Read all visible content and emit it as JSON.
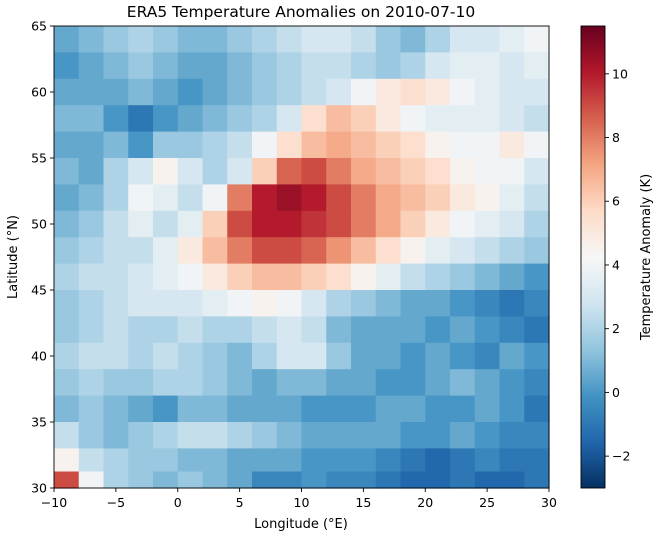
{
  "chart_data": {
    "type": "heatmap",
    "title": "ERA5 Temperature Anomalies on 2010-07-10",
    "xlabel": "Longitude (°E)",
    "ylabel": "Latitude (°N)",
    "colorbar_label": "Temperature Anomaly (K)",
    "colormap": "RdBu_r",
    "xlim": [
      -10,
      30
    ],
    "ylim": [
      30,
      65
    ],
    "clim": [
      -3.0,
      11.5
    ],
    "x_ticks": [
      -10,
      -5,
      0,
      5,
      10,
      15,
      20,
      25,
      30
    ],
    "x_tick_labels": [
      "−10",
      "−5",
      "0",
      "5",
      "10",
      "15",
      "20",
      "25",
      "30"
    ],
    "y_ticks": [
      30,
      35,
      40,
      45,
      50,
      55,
      60,
      65
    ],
    "y_tick_labels": [
      "30",
      "35",
      "40",
      "45",
      "50",
      "55",
      "60",
      "65"
    ],
    "colorbar_ticks": [
      -2,
      0,
      2,
      4,
      6,
      8,
      10
    ],
    "colorbar_tick_labels": [
      "−2",
      "0",
      "2",
      "4",
      "6",
      "8",
      "10"
    ],
    "grid": false,
    "x_lon": [
      -9,
      -7,
      -5,
      -3,
      -1,
      1,
      3,
      5,
      7,
      9,
      11,
      13,
      15,
      17,
      19,
      21,
      23,
      25,
      27,
      29
    ],
    "y_lat": [
      64,
      62,
      60,
      58,
      56,
      54,
      52,
      50,
      48,
      46,
      44,
      42,
      40,
      38,
      36,
      34,
      32,
      30.5
    ],
    "values": [
      [
        0.5,
        1.0,
        1.5,
        2.0,
        1.5,
        1.0,
        1.0,
        1.5,
        2.0,
        2.5,
        3.0,
        3.0,
        2.5,
        1.5,
        1.0,
        2.0,
        3.0,
        3.0,
        3.5,
        4.0
      ],
      [
        0.0,
        0.5,
        1.0,
        1.5,
        1.0,
        0.5,
        0.5,
        1.0,
        1.5,
        2.0,
        2.5,
        2.5,
        2.0,
        1.5,
        2.0,
        3.0,
        3.5,
        3.5,
        3.0,
        3.5
      ],
      [
        0.5,
        0.5,
        0.5,
        1.0,
        0.5,
        0.0,
        0.5,
        1.0,
        1.5,
        2.0,
        2.5,
        3.0,
        4.0,
        5.0,
        5.5,
        5.0,
        4.0,
        3.5,
        3.0,
        3.0
      ],
      [
        1.0,
        1.0,
        0.0,
        -1.0,
        0.0,
        0.5,
        1.0,
        1.5,
        2.0,
        3.0,
        5.5,
        6.5,
        6.0,
        5.0,
        4.0,
        3.5,
        3.5,
        3.5,
        3.0,
        2.5
      ],
      [
        0.5,
        0.5,
        1.0,
        0.0,
        1.5,
        1.5,
        2.0,
        2.5,
        4.0,
        5.5,
        6.5,
        7.0,
        6.5,
        6.0,
        5.5,
        4.5,
        4.0,
        4.0,
        5.0,
        4.0
      ],
      [
        1.0,
        0.5,
        2.0,
        3.0,
        4.5,
        3.0,
        2.0,
        3.0,
        6.0,
        8.5,
        9.0,
        8.0,
        7.0,
        6.5,
        6.0,
        5.5,
        4.5,
        4.0,
        4.0,
        3.0
      ],
      [
        0.5,
        1.0,
        2.0,
        4.0,
        3.5,
        2.5,
        4.0,
        8.0,
        10.0,
        10.5,
        10.0,
        9.0,
        8.0,
        7.0,
        6.5,
        6.0,
        5.0,
        4.5,
        3.5,
        2.5
      ],
      [
        1.0,
        1.5,
        2.5,
        3.5,
        2.5,
        3.5,
        6.0,
        9.0,
        10.0,
        10.0,
        9.5,
        9.0,
        8.0,
        7.0,
        6.0,
        5.0,
        4.0,
        3.5,
        3.0,
        2.0
      ],
      [
        1.5,
        2.0,
        2.5,
        2.5,
        3.5,
        5.0,
        6.5,
        8.0,
        9.0,
        9.0,
        8.5,
        7.5,
        6.5,
        5.5,
        4.5,
        3.5,
        3.0,
        2.5,
        2.0,
        1.5
      ],
      [
        2.0,
        2.5,
        2.5,
        3.0,
        3.5,
        4.0,
        5.0,
        6.0,
        6.5,
        6.5,
        6.0,
        5.5,
        4.5,
        3.5,
        2.5,
        2.0,
        1.5,
        1.0,
        0.5,
        0.0
      ],
      [
        1.5,
        2.0,
        2.5,
        3.0,
        3.0,
        3.0,
        3.5,
        4.0,
        4.5,
        4.0,
        3.0,
        2.0,
        1.5,
        1.0,
        0.5,
        0.5,
        0.0,
        -0.5,
        -1.0,
        -0.5
      ],
      [
        1.5,
        2.0,
        2.5,
        2.0,
        2.0,
        2.5,
        2.0,
        2.0,
        2.5,
        3.0,
        2.5,
        1.0,
        0.5,
        0.5,
        0.5,
        0.0,
        0.5,
        0.0,
        -0.5,
        -1.0
      ],
      [
        2.0,
        2.5,
        2.5,
        2.0,
        2.5,
        2.0,
        1.5,
        1.0,
        2.0,
        3.0,
        3.0,
        1.5,
        0.5,
        0.5,
        0.0,
        0.5,
        0.0,
        -0.5,
        0.5,
        0.0
      ],
      [
        1.5,
        2.0,
        1.5,
        1.5,
        2.0,
        2.0,
        1.5,
        1.0,
        0.5,
        1.0,
        1.0,
        0.5,
        0.5,
        0.0,
        0.0,
        0.5,
        1.0,
        0.5,
        0.0,
        -0.5
      ],
      [
        1.0,
        1.5,
        1.0,
        0.5,
        0.0,
        1.0,
        1.0,
        0.5,
        0.5,
        0.5,
        0.0,
        0.0,
        0.0,
        0.5,
        0.5,
        0.0,
        0.0,
        0.5,
        0.0,
        -1.0
      ],
      [
        2.5,
        1.5,
        1.0,
        1.5,
        2.0,
        2.5,
        2.5,
        2.0,
        1.5,
        1.0,
        0.5,
        0.5,
        0.5,
        0.5,
        0.0,
        0.0,
        0.5,
        0.0,
        -0.5,
        -0.5
      ],
      [
        4.5,
        2.5,
        2.0,
        1.5,
        1.5,
        1.0,
        1.0,
        0.5,
        0.5,
        0.5,
        0.0,
        0.0,
        0.0,
        -0.5,
        -1.0,
        -1.5,
        -1.0,
        -0.5,
        -1.0,
        -1.0
      ],
      [
        9.0,
        4.0,
        2.0,
        1.5,
        1.0,
        1.5,
        1.0,
        0.5,
        -0.5,
        -0.5,
        0.0,
        -0.5,
        -0.5,
        -1.0,
        -1.5,
        -1.5,
        -1.0,
        -1.5,
        -1.5,
        -1.0
      ]
    ]
  }
}
